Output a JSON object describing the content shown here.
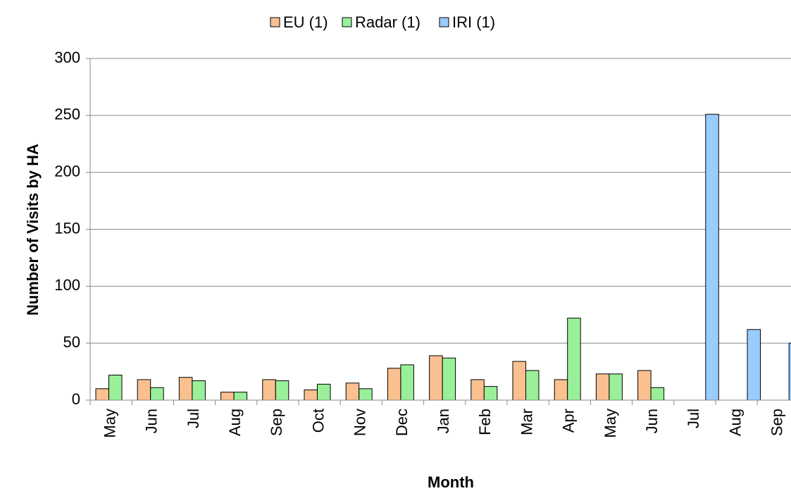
{
  "chart_data": {
    "type": "bar",
    "xlabel": "Month",
    "ylabel": "Number of Visits by HA",
    "categories": [
      "May",
      "Jun",
      "Jul",
      "Aug",
      "Sep",
      "Oct",
      "Nov",
      "Dec",
      "Jan",
      "Feb",
      "Mar",
      "Apr",
      "May",
      "Jun",
      "Jul",
      "Aug",
      "Sep"
    ],
    "series": [
      {
        "name": "EU (1)",
        "color": "#fac090",
        "values": [
          10,
          18,
          20,
          7,
          18,
          9,
          15,
          28,
          39,
          18,
          34,
          18,
          23,
          26,
          null,
          null,
          null
        ]
      },
      {
        "name": "Radar (1)",
        "color": "#99f099",
        "values": [
          22,
          11,
          17,
          7,
          17,
          14,
          10,
          31,
          37,
          12,
          26,
          72,
          23,
          11,
          null,
          null,
          null
        ]
      },
      {
        "name": "IRI (1)",
        "color": "#99ccff",
        "values": [
          null,
          null,
          null,
          null,
          null,
          null,
          null,
          null,
          null,
          null,
          null,
          null,
          null,
          null,
          251,
          62,
          50
        ]
      }
    ],
    "ylim": [
      0,
      300
    ],
    "yticks": [
      0,
      50,
      100,
      150,
      200,
      250,
      300
    ],
    "grid": true,
    "legend": "top"
  }
}
